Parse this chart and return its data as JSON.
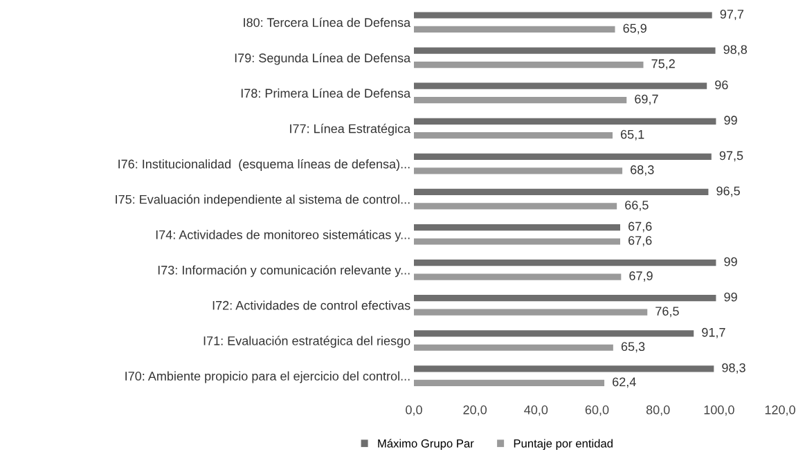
{
  "chart_data": {
    "type": "bar",
    "orientation": "horizontal",
    "categories": [
      "I80: Tercera Línea de Defensa",
      "I79: Segunda Línea de Defensa",
      "I78: Primera Línea de Defensa",
      "I77: Línea Estratégica",
      "I76: Institucionalidad  (esquema líneas de defensa)...",
      "I75: Evaluación independiente al sistema de control...",
      "I74: Actividades de monitoreo sistemáticas y...",
      "I73: Información y comunicación relevante y...",
      "I72: Actividades de control efectivas",
      "I71: Evaluación estratégica del riesgo",
      "I70: Ambiente propicio para el ejercicio del control..."
    ],
    "series": [
      {
        "name": "Máximo Grupo Par",
        "color": "#6e6e6e",
        "values": [
          97.7,
          98.8,
          96,
          99,
          97.5,
          96.5,
          67.6,
          99,
          99,
          91.7,
          98.3
        ],
        "value_labels": [
          "97,7",
          "98,8",
          "96",
          "99",
          "97,5",
          "96,5",
          "67,6",
          "99",
          "99",
          "91,7",
          "98,3"
        ]
      },
      {
        "name": "Puntaje por entidad",
        "color": "#9a9a9a",
        "values": [
          65.9,
          75.2,
          69.7,
          65.1,
          68.3,
          66.5,
          67.6,
          67.9,
          76.5,
          65.3,
          62.4
        ],
        "value_labels": [
          "65,9",
          "75,2",
          "69,7",
          "65,1",
          "68,3",
          "66,5",
          "67,6",
          "67,9",
          "76,5",
          "65,3",
          "62,4"
        ]
      }
    ],
    "xlim": [
      0,
      120
    ],
    "xticks": [
      {
        "value": 0,
        "label": "0,0"
      },
      {
        "value": 20,
        "label": "20,0"
      },
      {
        "value": 40,
        "label": "40,0"
      },
      {
        "value": 60,
        "label": "60,0"
      },
      {
        "value": 80,
        "label": "80,0"
      },
      {
        "value": 100,
        "label": "100,0"
      },
      {
        "value": 120,
        "label": "120,0"
      }
    ],
    "grid": false,
    "legend": "bottom"
  }
}
